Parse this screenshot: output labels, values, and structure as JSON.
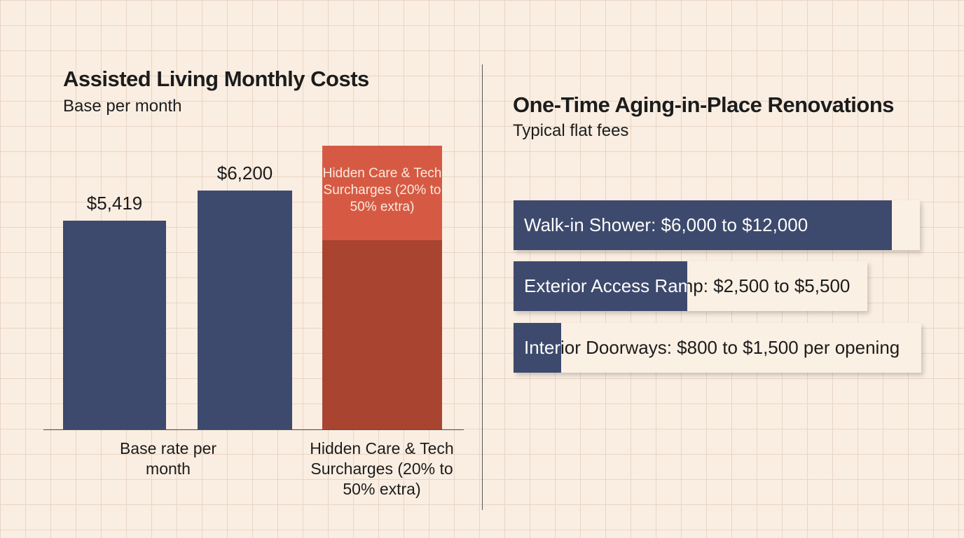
{
  "chart_data": [
    {
      "type": "bar",
      "title": "Assisted Living Monthly Costs",
      "subtitle": "Base per month",
      "categories": [
        "Base rate per month",
        null,
        "Hidden Care & Tech Surcharges (20% to 50% extra)"
      ],
      "series": [
        {
          "values": [
            5419,
            6200,
            4900
          ],
          "value_labels": [
            "$5,419",
            "$6,200",
            null
          ],
          "colors": [
            "#3d4a6e",
            "#3d4a6e",
            "#a8442f"
          ]
        },
        {
          "values": [
            null,
            null,
            2460
          ],
          "colors": [
            null,
            null,
            "#d65a43"
          ]
        }
      ],
      "ylim": [
        0,
        7500
      ]
    },
    {
      "type": "hbar",
      "title": "One-Time Aging-in-Place Renovations",
      "subtitle": "Typical flat fees",
      "categories": [
        "Walk-in Shower: $6,000 to $12,000",
        "Exterior Access Ramp: $2,500 to $5,500",
        "Interior Doorways: $800 to $1,500 per opening"
      ],
      "values": [
        12000,
        5500,
        1500
      ],
      "color": "#3d4a6e",
      "xlim": [
        0,
        13000
      ]
    }
  ]
}
